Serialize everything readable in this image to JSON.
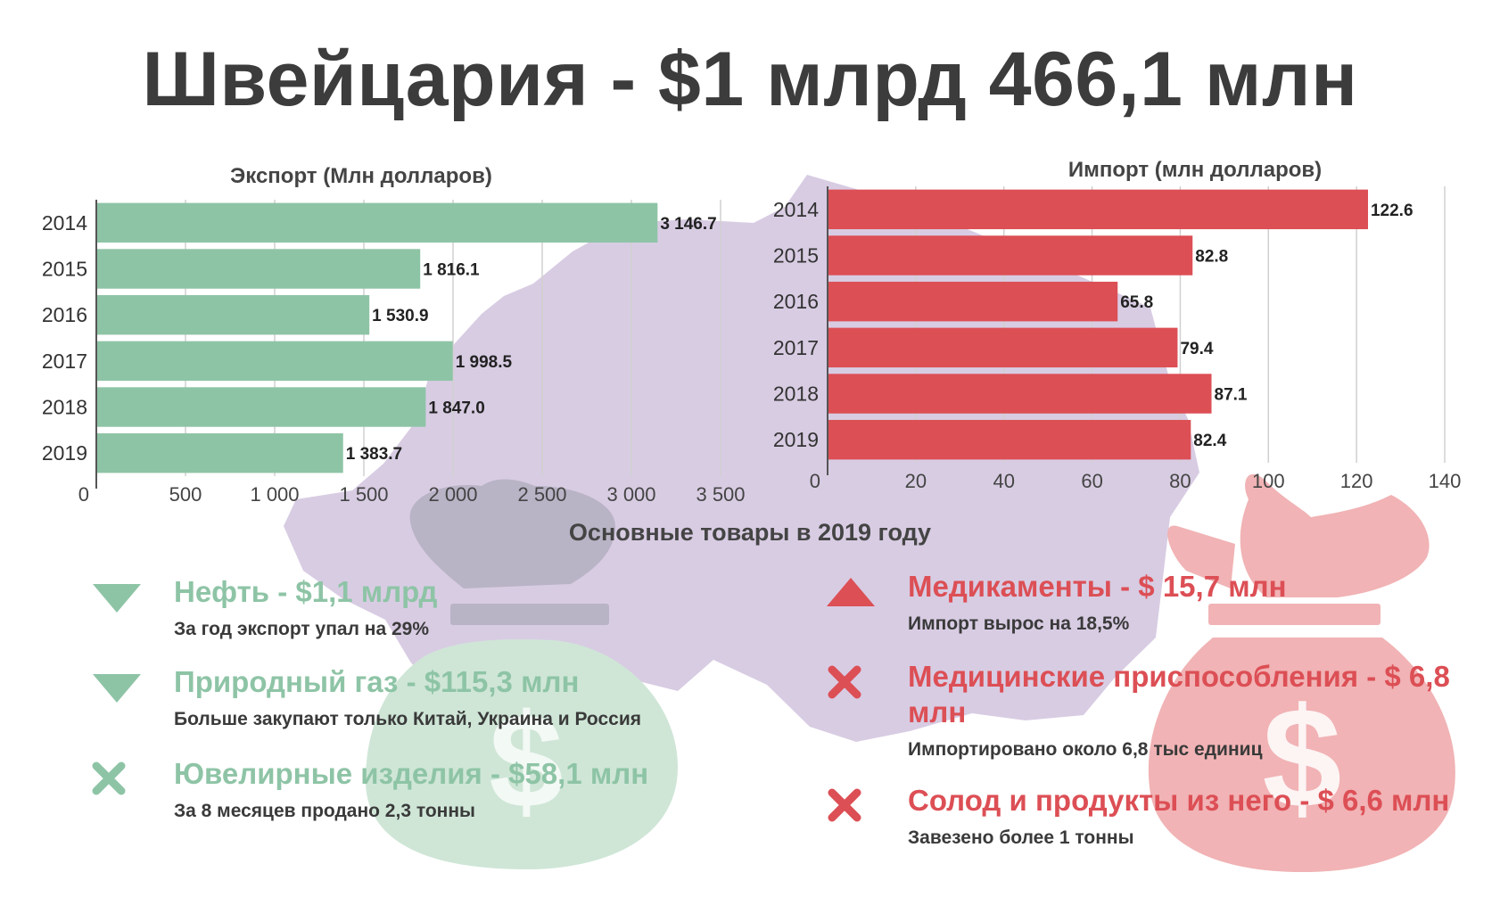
{
  "title": "Швейцария - $1 млрд 466,1 млн",
  "colors": {
    "export": "#8ec4a6",
    "import": "#dc4f55",
    "map": "#d8cce3",
    "bag_grey": "#b9b3c6",
    "bag_green": "#cfe6d7",
    "bag_red": "#f1b3b5",
    "text": "#3c3c3c"
  },
  "chart_data": [
    {
      "type": "bar",
      "orientation": "horizontal",
      "title": "Экспорт (Млн долларов)",
      "categories": [
        "2014",
        "2015",
        "2016",
        "2017",
        "2018",
        "2019"
      ],
      "values": [
        3146.7,
        1816.1,
        1530.9,
        1998.5,
        1847.0,
        1383.7
      ],
      "value_labels": [
        "3 146.7",
        "1 816.1",
        "1 530.9",
        "1 998.5",
        "1 847.0",
        "1 383.7"
      ],
      "xlim": [
        0,
        3500
      ],
      "ticks": [
        0,
        500,
        1000,
        1500,
        2000,
        2500,
        3000,
        3500
      ],
      "tick_labels": [
        "0",
        "500",
        "1 000",
        "1 500",
        "2 000",
        "2 500",
        "3 000",
        "3 500"
      ],
      "grid": true,
      "color": "#8ec4a6"
    },
    {
      "type": "bar",
      "orientation": "horizontal",
      "title": "Импорт (млн долларов)",
      "categories": [
        "2014",
        "2015",
        "2016",
        "2017",
        "2018",
        "2019"
      ],
      "values": [
        122.6,
        82.8,
        65.8,
        79.4,
        87.1,
        82.4
      ],
      "value_labels": [
        "122.6",
        "82.8",
        "65.8",
        "79.4",
        "87.1",
        "82.4"
      ],
      "xlim": [
        0,
        140
      ],
      "ticks": [
        0,
        20,
        40,
        60,
        80,
        100,
        120,
        140
      ],
      "tick_labels": [
        "0",
        "20",
        "40",
        "60",
        "80",
        "100",
        "120",
        "140"
      ],
      "grid": true,
      "color": "#dc4f55"
    }
  ],
  "section_title": "Основные товары в 2019 году",
  "export_items": [
    {
      "icon": "triangle-down-icon",
      "name": "Нефть - $1,1 млрд",
      "desc": "За год экспорт упал на 29%"
    },
    {
      "icon": "triangle-down-icon",
      "name": "Природный газ - $115,3 млн",
      "desc": "Больше закупают только Китай, Украина и Россия"
    },
    {
      "icon": "cross-icon",
      "name": "Ювелирные изделия - $58,1 млн",
      "desc": "За 8 месяцев продано 2,3 тонны"
    }
  ],
  "import_items": [
    {
      "icon": "triangle-up-icon",
      "name": "Медикаменты - $ 15,7 млн",
      "desc": "Импорт вырос на 18,5%"
    },
    {
      "icon": "cross-icon",
      "name": "Медицинские приспособления - $ 6,8 млн",
      "desc": "Импортировано около 6,8 тыс единиц"
    },
    {
      "icon": "cross-icon",
      "name": "Солод и продукты из него - $ 6,6 млн",
      "desc": "Завезено более 1 тонны"
    }
  ],
  "background_icons": [
    "switzerland-map-icon",
    "money-bag-icon",
    "dollar-icon"
  ]
}
